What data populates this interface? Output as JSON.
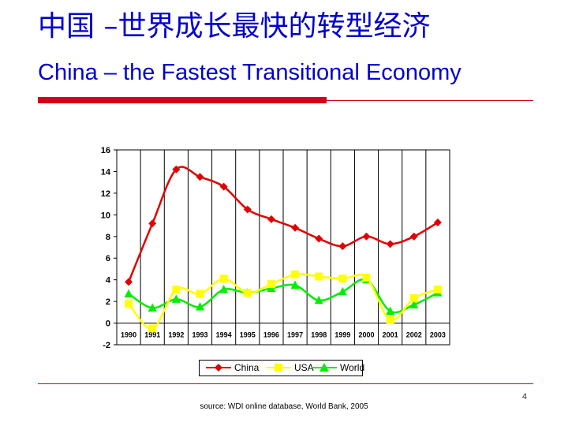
{
  "slide": {
    "title_cn": "中国 –世界成长最快的转型经济",
    "title_en": "China – the Fastest Transitional Economy",
    "page_number": "4",
    "source": "source: WDI online database, World Bank, 2005",
    "accent_color": "#d0001a",
    "title_color": "#0000cc"
  },
  "chart_data": {
    "type": "line",
    "title": "",
    "xlabel": "",
    "ylabel": "",
    "categories": [
      "1990",
      "1991",
      "1992",
      "1993",
      "1994",
      "1995",
      "1996",
      "1997",
      "1998",
      "1999",
      "2000",
      "2001",
      "2002",
      "2003"
    ],
    "ylim": [
      -2,
      16
    ],
    "yticks": [
      16,
      14,
      12,
      10,
      8,
      6,
      4,
      2,
      0,
      -2
    ],
    "grid": "vertical",
    "legend_position": "bottom",
    "series": [
      {
        "name": "China",
        "color": "#e00000",
        "marker": "diamond",
        "values": [
          3.8,
          9.2,
          14.2,
          13.5,
          12.6,
          10.5,
          9.6,
          8.8,
          7.8,
          7.1,
          8.0,
          7.3,
          8.0,
          9.3
        ]
      },
      {
        "name": "USA",
        "color": "#ffff00",
        "marker": "square",
        "values": [
          1.8,
          -0.5,
          3.1,
          2.7,
          4.1,
          2.8,
          3.6,
          4.5,
          4.3,
          4.1,
          4.2,
          0.3,
          2.3,
          3.1
        ]
      },
      {
        "name": "World",
        "color": "#00ee00",
        "marker": "triangle",
        "values": [
          2.7,
          1.4,
          2.2,
          1.5,
          3.1,
          2.8,
          3.2,
          3.5,
          2.1,
          2.9,
          4.0,
          1.1,
          1.7,
          2.8
        ]
      }
    ]
  }
}
